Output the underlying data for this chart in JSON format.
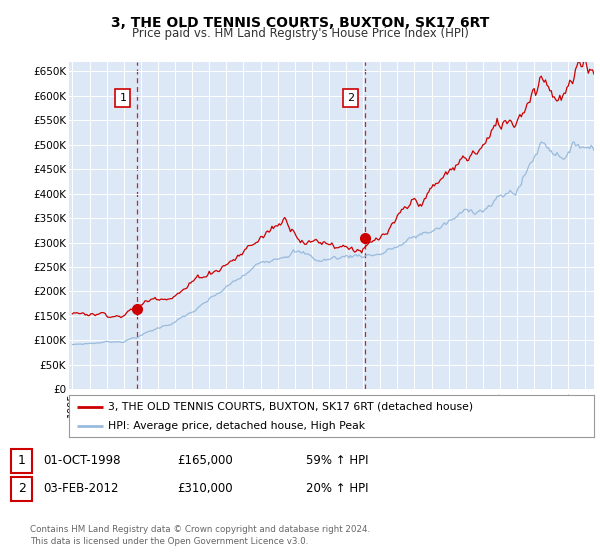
{
  "title": "3, THE OLD TENNIS COURTS, BUXTON, SK17 6RT",
  "subtitle": "Price paid vs. HM Land Registry's House Price Index (HPI)",
  "ylim": [
    0,
    670000
  ],
  "yticks": [
    0,
    50000,
    100000,
    150000,
    200000,
    250000,
    300000,
    350000,
    400000,
    450000,
    500000,
    550000,
    600000,
    650000
  ],
  "ytick_labels": [
    "£0",
    "£50K",
    "£100K",
    "£150K",
    "£200K",
    "£250K",
    "£300K",
    "£350K",
    "£400K",
    "£450K",
    "£500K",
    "£550K",
    "£600K",
    "£650K"
  ],
  "xlim_start": 1994.8,
  "xlim_end": 2025.5,
  "xtick_years": [
    1995,
    1996,
    1997,
    1998,
    1999,
    2000,
    2001,
    2002,
    2003,
    2004,
    2005,
    2006,
    2007,
    2008,
    2009,
    2010,
    2011,
    2012,
    2013,
    2014,
    2015,
    2016,
    2017,
    2018,
    2019,
    2020,
    2021,
    2022,
    2023,
    2024,
    2025
  ],
  "red_line_color": "#cc0000",
  "blue_line_color": "#99bbdd",
  "sale1_x": 1998.75,
  "sale1_y": 165000,
  "sale1_label": "1",
  "sale1_date": "01-OCT-1998",
  "sale1_price": "£165,000",
  "sale1_hpi": "59% ↑ HPI",
  "sale2_x": 2012.08,
  "sale2_y": 310000,
  "sale2_label": "2",
  "sale2_date": "03-FEB-2012",
  "sale2_price": "£310,000",
  "sale2_hpi": "20% ↑ HPI",
  "legend_line1": "3, THE OLD TENNIS COURTS, BUXTON, SK17 6RT (detached house)",
  "legend_line2": "HPI: Average price, detached house, High Peak",
  "copyright": "Contains HM Land Registry data © Crown copyright and database right 2024.\nThis data is licensed under the Open Government Licence v3.0.",
  "background_color": "#dce8f5",
  "fig_bg_color": "#ffffff"
}
